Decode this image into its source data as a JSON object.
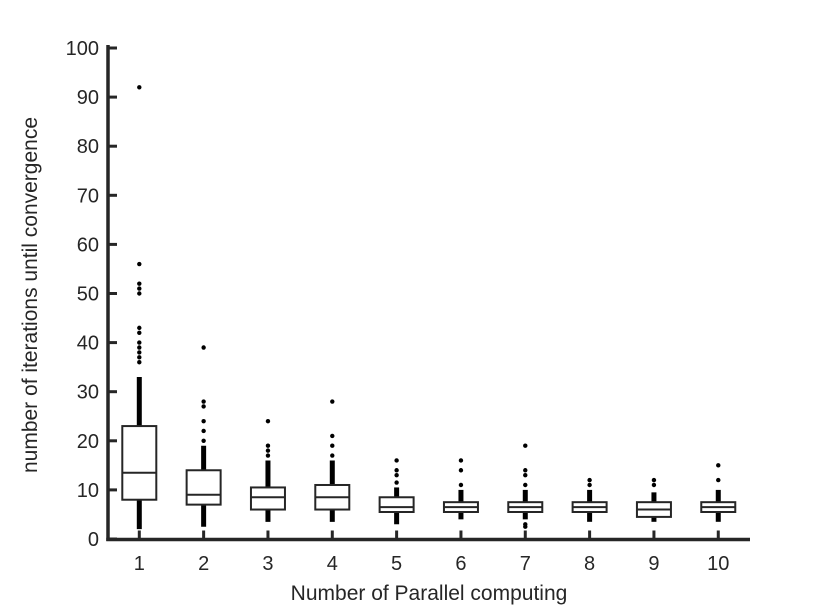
{
  "figure": {
    "background": "#ffffff",
    "axis_color": "#262626",
    "whisker_color": "#000000",
    "box_fill": "#ffffff",
    "box_edge_color": "#262626",
    "outlier_color": "#000000"
  },
  "chart_data": {
    "type": "boxplot",
    "title": "",
    "xlabel": "Number of Parallel computing",
    "ylabel": "number of iterations until convergence",
    "ylim": [
      0,
      100
    ],
    "yticks": [
      0,
      10,
      20,
      30,
      40,
      50,
      60,
      70,
      80,
      90,
      100
    ],
    "categories": [
      "1",
      "2",
      "3",
      "4",
      "5",
      "6",
      "7",
      "8",
      "9",
      "10"
    ],
    "grid": false,
    "legend": null,
    "boxes": [
      {
        "category": "1",
        "whisker_low": 2,
        "q1": 8,
        "median": 13.5,
        "q3": 23,
        "whisker_high": 33,
        "outliers": [
          92,
          56,
          52,
          51,
          50,
          43,
          42,
          40,
          39,
          38,
          37,
          36
        ]
      },
      {
        "category": "2",
        "whisker_low": 2.5,
        "q1": 7,
        "median": 9,
        "q3": 14,
        "whisker_high": 19,
        "outliers": [
          39,
          28,
          27,
          24,
          22,
          20
        ]
      },
      {
        "category": "3",
        "whisker_low": 3.5,
        "q1": 6,
        "median": 8.5,
        "q3": 10.5,
        "whisker_high": 16,
        "outliers": [
          24,
          19,
          18,
          17
        ]
      },
      {
        "category": "4",
        "whisker_low": 3.5,
        "q1": 6,
        "median": 8.5,
        "q3": 11,
        "whisker_high": 16,
        "outliers": [
          28,
          21,
          19,
          17
        ]
      },
      {
        "category": "5",
        "whisker_low": 3,
        "q1": 5.5,
        "median": 6.5,
        "q3": 8.5,
        "whisker_high": 10.5,
        "outliers": [
          16,
          14,
          13,
          11.5
        ]
      },
      {
        "category": "6",
        "whisker_low": 4,
        "q1": 5.5,
        "median": 6.5,
        "q3": 7.5,
        "whisker_high": 10,
        "outliers": [
          16,
          14,
          11
        ]
      },
      {
        "category": "7",
        "whisker_low": 4,
        "q1": 5.5,
        "median": 6.5,
        "q3": 7.5,
        "whisker_high": 10,
        "outliers": [
          19,
          14,
          13,
          11,
          3,
          2.5
        ]
      },
      {
        "category": "8",
        "whisker_low": 3.5,
        "q1": 5.5,
        "median": 6.5,
        "q3": 7.5,
        "whisker_high": 10,
        "outliers": [
          12,
          11
        ]
      },
      {
        "category": "9",
        "whisker_low": 3.5,
        "q1": 4.5,
        "median": 6,
        "q3": 7.5,
        "whisker_high": 9.5,
        "outliers": [
          12,
          11
        ]
      },
      {
        "category": "10",
        "whisker_low": 3.5,
        "q1": 5.5,
        "median": 6.5,
        "q3": 7.5,
        "whisker_high": 10,
        "outliers": [
          15,
          12
        ]
      }
    ]
  }
}
